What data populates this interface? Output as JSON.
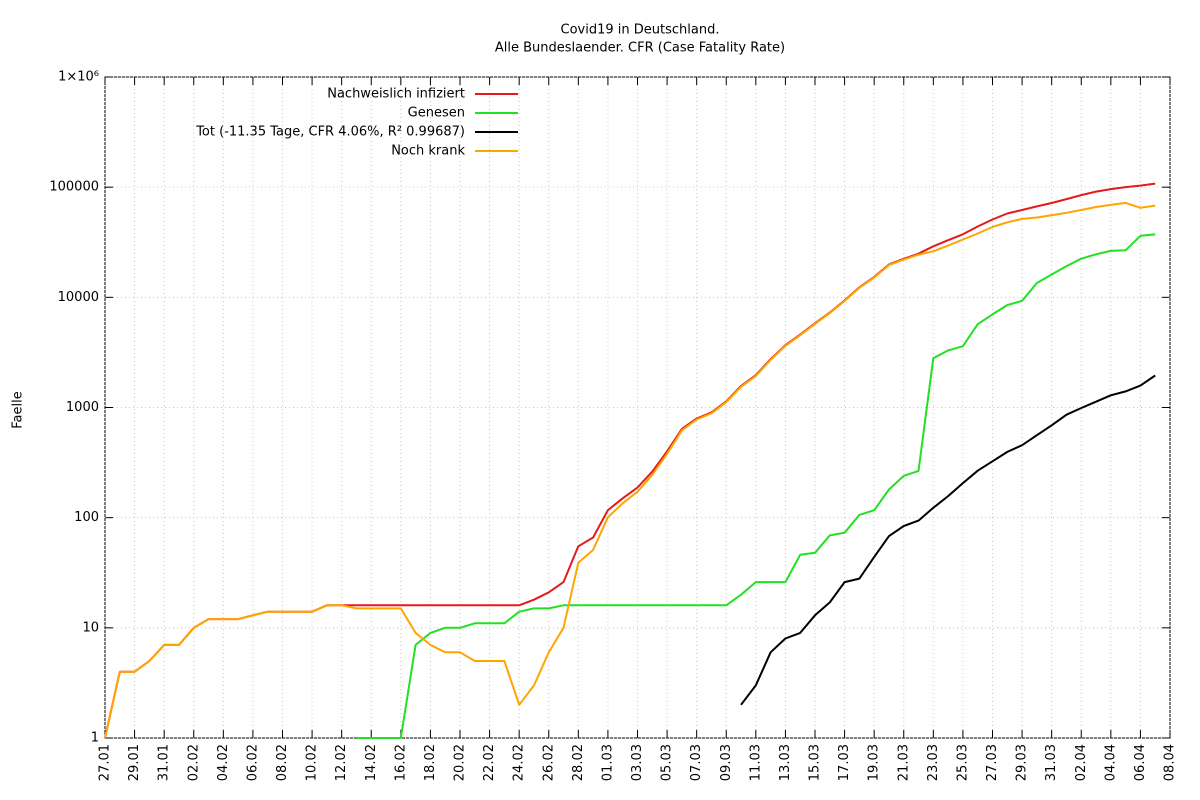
{
  "chart_data": {
    "type": "line",
    "title": "Covid19 in Deutschland.",
    "subtitle": "Alle Bundeslaender. CFR (Case Fatality Rate)",
    "y_label": "Faelle",
    "log_y": true,
    "grid": true,
    "legend": "top-left",
    "categories": [
      "27.01",
      null,
      "29.01",
      null,
      "31.01",
      null,
      "02.02",
      null,
      "04.02",
      null,
      "06.02",
      null,
      "08.02",
      null,
      "10.02",
      null,
      "12.02",
      null,
      "14.02",
      null,
      "16.02",
      null,
      "18.02",
      null,
      "20.02",
      null,
      "22.02",
      null,
      "24.02",
      null,
      "26.02",
      null,
      "28.02",
      null,
      "01.03",
      null,
      "03.03",
      null,
      "05.03",
      null,
      "07.03",
      null,
      "09.03",
      null,
      "11.03",
      null,
      "13.03",
      null,
      "15.03",
      null,
      "17.03",
      null,
      "19.03",
      null,
      "21.03",
      null,
      "23.03",
      null,
      "25.03",
      null,
      "27.03",
      null,
      "29.03",
      null,
      "31.03",
      null,
      "02.04",
      null,
      "04.04",
      null,
      "06.04",
      null,
      "08.04"
    ],
    "ylim": [
      1,
      1000000
    ],
    "yticks": [
      1,
      10,
      100,
      1000,
      10000,
      100000,
      {
        "value": 1000000,
        "label": "1×10⁶"
      }
    ],
    "series": [
      {
        "name": "Nachweislich infiziert",
        "color": "#e41a1c",
        "values": [
          1,
          4,
          4,
          5,
          7,
          7,
          10,
          12,
          12,
          12,
          13,
          14,
          14,
          14,
          14,
          16,
          16,
          16,
          16,
          16,
          16,
          16,
          16,
          16,
          16,
          16,
          16,
          16,
          16,
          18,
          21,
          26,
          55,
          66,
          117,
          150,
          188,
          262,
          400,
          639,
          795,
          902,
          1139,
          1567,
          1966,
          2745,
          3675,
          4585,
          5813,
          7272,
          9367,
          12327,
          15320,
          19848,
          22364,
          24873,
          29056,
          32986,
          37323,
          43938,
          50871,
          57695,
          62095,
          66885,
          71808,
          77872,
          84794,
          91159,
          96092,
          100123,
          103375,
          107663,
          null
        ]
      },
      {
        "name": "Genesen",
        "color": "#22e022",
        "values": [
          null,
          null,
          null,
          null,
          null,
          null,
          null,
          null,
          null,
          null,
          null,
          null,
          null,
          null,
          null,
          null,
          null,
          1,
          1,
          1,
          1,
          7,
          9,
          10,
          10,
          11,
          11,
          11,
          14,
          15,
          15,
          16,
          16,
          16,
          16,
          16,
          16,
          16,
          16,
          16,
          16,
          16,
          16,
          20,
          26,
          26,
          26,
          46,
          48,
          69,
          73,
          106,
          117,
          180,
          240,
          266,
          2800,
          3300,
          3600,
          5700,
          7000,
          8500,
          9300,
          13500,
          16100,
          19200,
          22400,
          24600,
          26400,
          26700,
          36200,
          37300,
          null
        ]
      },
      {
        "name": "Tot (-11.35 Tage, CFR 4.06%, R² 0.99687)",
        "color": "#000000",
        "values": [
          null,
          null,
          null,
          null,
          null,
          null,
          null,
          null,
          null,
          null,
          null,
          null,
          null,
          null,
          null,
          null,
          null,
          null,
          null,
          null,
          null,
          null,
          null,
          null,
          null,
          null,
          null,
          null,
          null,
          null,
          null,
          null,
          null,
          null,
          null,
          null,
          null,
          null,
          null,
          null,
          null,
          null,
          null,
          2,
          3,
          6,
          8,
          9,
          13,
          17,
          26,
          28,
          44,
          68,
          84,
          94,
          123,
          157,
          206,
          267,
          325,
          395,
          455,
          560,
          690,
          860,
          990,
          1130,
          1290,
          1400,
          1580,
          1950,
          null
        ]
      },
      {
        "name": "Noch krank",
        "color": "#ffa500",
        "values": [
          1,
          4,
          4,
          5,
          7,
          7,
          10,
          12,
          12,
          12,
          13,
          14,
          14,
          14,
          14,
          16,
          16,
          15,
          15,
          15,
          15,
          9,
          7,
          6,
          6,
          5,
          5,
          5,
          2,
          3,
          6,
          10,
          39,
          51,
          101,
          135,
          172,
          245,
          380,
          620,
          778,
          885,
          1120,
          1540,
          1930,
          2700,
          3620,
          4530,
          5740,
          7190,
          9260,
          12200,
          15150,
          19600,
          22000,
          24400,
          26200,
          29500,
          33500,
          38000,
          43500,
          48000,
          51500,
          53000,
          55500,
          58500,
          62000,
          66000,
          69000,
          72000,
          65000,
          68000,
          null
        ]
      }
    ]
  }
}
